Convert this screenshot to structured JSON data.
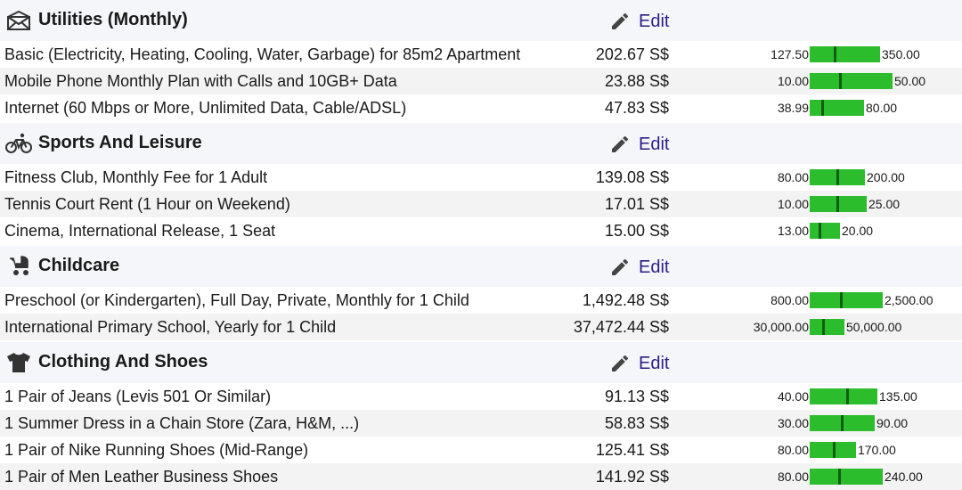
{
  "edit_label": "Edit",
  "currency": "S$",
  "colors": {
    "bar": "#2bbd2b",
    "marker": "#0f5e0f",
    "edit": "#2b1f8a",
    "category_bg": "#f5f6fa",
    "alt_row_bg": "#f3f3f3"
  },
  "categories": [
    {
      "title": "Utilities (Monthly)",
      "icon": "envelope-icon",
      "items": [
        {
          "name": "Basic (Electricity, Heating, Cooling, Water, Garbage) for 85m2 Apartment",
          "price": "202.67 S$",
          "low": "127.50",
          "high": "350.00",
          "marker_fraction": 0.34
        },
        {
          "name": "Mobile Phone Monthly Plan with Calls and 10GB+ Data",
          "price": "23.88 S$",
          "low": "10.00",
          "high": "50.00",
          "marker_fraction": 0.35
        },
        {
          "name": "Internet (60 Mbps or More, Unlimited Data, Cable/ADSL)",
          "price": "47.83 S$",
          "low": "38.99",
          "high": "80.00",
          "marker_fraction": 0.22
        }
      ]
    },
    {
      "title": "Sports And Leisure",
      "icon": "bicycle-icon",
      "items": [
        {
          "name": "Fitness Club, Monthly Fee for 1 Adult",
          "price": "139.08 S$",
          "low": "80.00",
          "high": "200.00",
          "marker_fraction": 0.49
        },
        {
          "name": "Tennis Court Rent (1 Hour on Weekend)",
          "price": "17.01 S$",
          "low": "10.00",
          "high": "25.00",
          "marker_fraction": 0.47
        },
        {
          "name": "Cinema, International Release, 1 Seat",
          "price": "15.00 S$",
          "low": "13.00",
          "high": "20.00",
          "marker_fraction": 0.29
        }
      ]
    },
    {
      "title": "Childcare",
      "icon": "stroller-icon",
      "items": [
        {
          "name": "Preschool (or Kindergarten), Full Day, Private, Monthly for 1 Child",
          "price": "1,492.48 S$",
          "low": "800.00",
          "high": "2,500.00",
          "marker_fraction": 0.41
        },
        {
          "name": "International Primary School, Yearly for 1 Child",
          "price": "37,472.44 S$",
          "low": "30,000.00",
          "high": "50,000.00",
          "marker_fraction": 0.37
        }
      ]
    },
    {
      "title": "Clothing And Shoes",
      "icon": "tshirt-icon",
      "items": [
        {
          "name": "1 Pair of Jeans (Levis 501 Or Similar)",
          "price": "91.13 S$",
          "low": "40.00",
          "high": "135.00",
          "marker_fraction": 0.54
        },
        {
          "name": "1 Summer Dress in a Chain Store (Zara, H&M, ...)",
          "price": "58.83 S$",
          "low": "30.00",
          "high": "90.00",
          "marker_fraction": 0.48
        },
        {
          "name": "1 Pair of Nike Running Shoes (Mid-Range)",
          "price": "125.41 S$",
          "low": "80.00",
          "high": "170.00",
          "marker_fraction": 0.5
        },
        {
          "name": "1 Pair of Men Leather Business Shoes",
          "price": "141.92 S$",
          "low": "80.00",
          "high": "240.00",
          "marker_fraction": 0.39
        }
      ]
    }
  ]
}
